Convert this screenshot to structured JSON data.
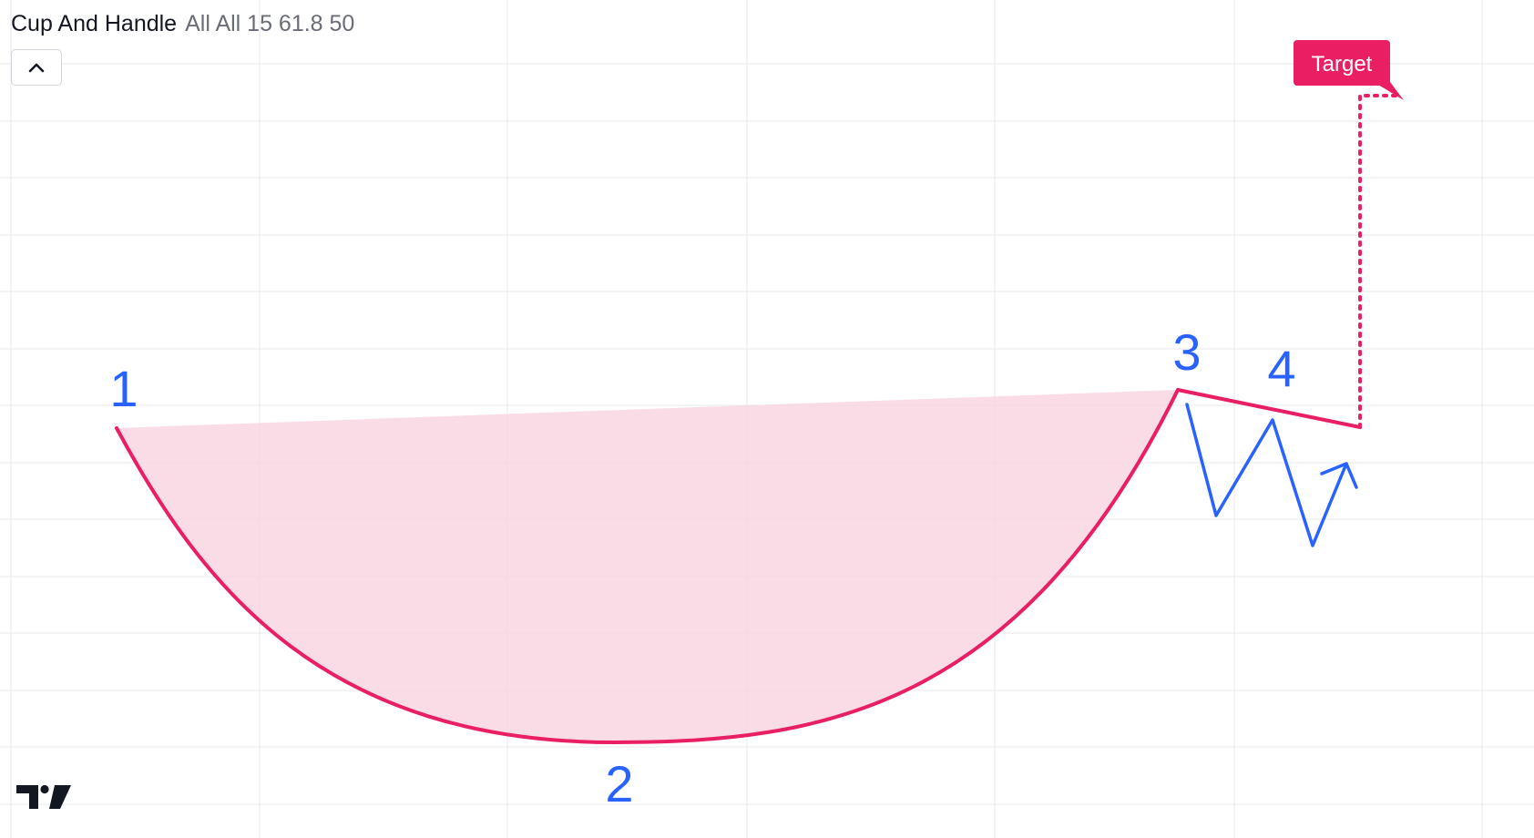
{
  "legend": {
    "title": "Cup And Handle",
    "params": "All All 15 61.8 50"
  },
  "drawing": {
    "type": "cup_and_handle",
    "points": [
      {
        "label": "1"
      },
      {
        "label": "2"
      },
      {
        "label": "3"
      },
      {
        "label": "4"
      }
    ],
    "target_label": "Target"
  },
  "icons": {
    "collapse": "chevron-up-icon",
    "logo": "tradingview-logo"
  },
  "colors": {
    "cup_line": "#e91e63",
    "cup_fill": "#f8d3df",
    "labels": "#2962ff",
    "target_badge": "#e91e63",
    "grid": "#e9eaee"
  }
}
